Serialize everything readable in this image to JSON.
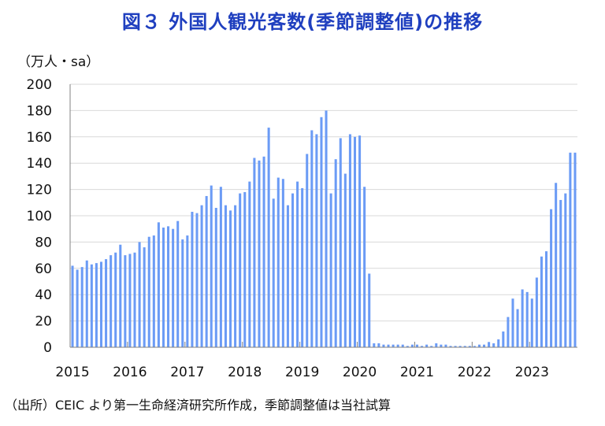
{
  "title": "図３ 外国人観光客数(季節調整値)の推移",
  "source": "（出所）CEIC より第一生命経済研究所作成，季節調整値は当社試算",
  "colors": {
    "bar": "#6b9bf5",
    "title": "#1f3fbf",
    "grid": "#d9d9d9",
    "axis": "#808080"
  },
  "chart_data": {
    "type": "bar",
    "title": "図３ 外国人観光客数(季節調整値)の推移",
    "ylabel": "（万人・sa）",
    "xlabel": "",
    "ylim": [
      0,
      200
    ],
    "yticks": [
      0,
      20,
      40,
      60,
      80,
      100,
      120,
      140,
      160,
      180,
      200
    ],
    "xtick_labels": [
      "2015",
      "2016",
      "2017",
      "2018",
      "2019",
      "2020",
      "2021",
      "2022",
      "2023"
    ],
    "grid": "horizontal",
    "start": "2015-01",
    "end": "2023-06",
    "frequency": "monthly",
    "values": [
      62,
      59,
      61,
      66,
      63,
      64,
      65,
      67,
      70,
      72,
      78,
      70,
      71,
      72,
      80,
      76,
      84,
      85,
      95,
      91,
      92,
      90,
      96,
      82,
      85,
      103,
      102,
      108,
      115,
      123,
      106,
      122,
      108,
      104,
      108,
      117,
      118,
      126,
      144,
      142,
      145,
      167,
      113,
      129,
      128,
      108,
      117,
      126,
      121,
      147,
      165,
      162,
      175,
      180,
      117,
      143,
      159,
      132,
      162,
      160,
      161,
      122,
      56,
      3,
      3,
      2,
      2,
      2,
      2,
      2,
      1,
      2,
      2,
      1,
      2,
      1,
      3,
      2,
      2,
      1,
      1,
      1,
      1,
      1,
      1,
      2,
      2,
      4,
      3,
      6,
      12,
      23,
      37,
      29,
      44,
      42,
      37,
      53,
      69,
      73,
      105,
      125,
      112,
      117,
      148,
      148
    ]
  }
}
